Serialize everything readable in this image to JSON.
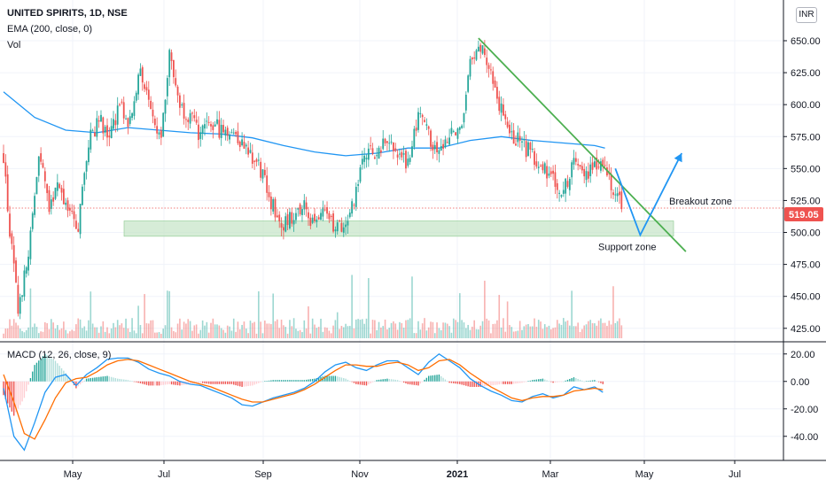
{
  "header": {
    "title": "UNITED SPIRITS, 1D, NSE",
    "ema": "EMA (200, close, 0)",
    "vol": "Vol",
    "macd": "MACD (12, 26, close, 9)",
    "currency": "INR"
  },
  "colors": {
    "up": "#26a69a",
    "down": "#ef5350",
    "ema": "#2196f3",
    "macd_line": "#2196f3",
    "signal_line": "#ff6d00",
    "trendline": "#4caf50",
    "projection": "#2196f3",
    "support_fill": "#c8e6c9",
    "price_tag": "#ef5350"
  },
  "chart_data": [
    {
      "type": "candlestick",
      "title": "UNITED SPIRITS, 1D, NSE",
      "x_ticks": [
        "May",
        "Jul",
        "Sep",
        "Nov",
        "2021",
        "Mar",
        "May",
        "Jul"
      ],
      "y_ticks": [
        "425.00",
        "450.00",
        "475.00",
        "500.00",
        "525.00",
        "550.00",
        "575.00",
        "600.00",
        "625.00",
        "650.00"
      ],
      "ylim": [
        420,
        668
      ],
      "last_price": "519.05",
      "close_path": [
        [
          0,
          560
        ],
        [
          3,
          500
        ],
        [
          7,
          440
        ],
        [
          12,
          480
        ],
        [
          17,
          560
        ],
        [
          22,
          520
        ],
        [
          27,
          540
        ],
        [
          31,
          515
        ],
        [
          36,
          505
        ],
        [
          41,
          570
        ],
        [
          46,
          590
        ],
        [
          51,
          575
        ],
        [
          56,
          600
        ],
        [
          61,
          585
        ],
        [
          66,
          630
        ],
        [
          71,
          590
        ],
        [
          76,
          580
        ],
        [
          80,
          640
        ],
        [
          85,
          600
        ],
        [
          90,
          590
        ],
        [
          95,
          575
        ],
        [
          100,
          585
        ],
        [
          105,
          580
        ],
        [
          110,
          580
        ],
        [
          115,
          570
        ],
        [
          120,
          560
        ],
        [
          125,
          545
        ],
        [
          130,
          520
        ],
        [
          135,
          505
        ],
        [
          140,
          515
        ],
        [
          145,
          520
        ],
        [
          150,
          505
        ],
        [
          155,
          515
        ],
        [
          160,
          505
        ],
        [
          165,
          500
        ],
        [
          170,
          530
        ],
        [
          175,
          565
        ],
        [
          180,
          560
        ],
        [
          185,
          575
        ],
        [
          190,
          560
        ],
        [
          195,
          555
        ],
        [
          200,
          590
        ],
        [
          205,
          575
        ],
        [
          210,
          565
        ],
        [
          215,
          575
        ],
        [
          220,
          580
        ],
        [
          225,
          630
        ],
        [
          230,
          645
        ],
        [
          235,
          630
        ],
        [
          240,
          595
        ],
        [
          245,
          575
        ],
        [
          250,
          570
        ],
        [
          255,
          560
        ],
        [
          260,
          550
        ],
        [
          265,
          545
        ],
        [
          270,
          530
        ],
        [
          275,
          560
        ],
        [
          280,
          545
        ],
        [
          285,
          555
        ],
        [
          290,
          555
        ],
        [
          295,
          530
        ],
        [
          298,
          519
        ]
      ],
      "ema200_path": [
        [
          0,
          610
        ],
        [
          15,
          590
        ],
        [
          30,
          580
        ],
        [
          45,
          578
        ],
        [
          60,
          582
        ],
        [
          75,
          580
        ],
        [
          90,
          578
        ],
        [
          105,
          577
        ],
        [
          120,
          574
        ],
        [
          135,
          568
        ],
        [
          150,
          563
        ],
        [
          165,
          560
        ],
        [
          180,
          562
        ],
        [
          195,
          566
        ],
        [
          210,
          566
        ],
        [
          225,
          572
        ],
        [
          240,
          575
        ],
        [
          255,
          572
        ],
        [
          270,
          570
        ],
        [
          285,
          568
        ],
        [
          290,
          566
        ]
      ],
      "annotations": {
        "support_zone_label": "Support zone",
        "breakout_zone_label": "Breakout zone",
        "support_zone_range": [
          497,
          509
        ],
        "trendline": [
          [
            229,
            652
          ],
          [
            329,
            485
          ]
        ],
        "projection": [
          [
            295,
            550
          ],
          [
            307,
            498
          ],
          [
            327,
            562
          ]
        ]
      }
    },
    {
      "type": "bar",
      "name": "Vol",
      "note": "relative volume, same daily index as price"
    },
    {
      "type": "line",
      "title": "MACD (12, 26, close, 9)",
      "y_ticks": [
        "-40.00",
        "-20.00",
        "0.00",
        "20.00"
      ],
      "ylim": [
        -55,
        25
      ],
      "macd_path": [
        [
          0,
          -5
        ],
        [
          5,
          -40
        ],
        [
          10,
          -50
        ],
        [
          15,
          -30
        ],
        [
          20,
          -8
        ],
        [
          25,
          3
        ],
        [
          30,
          5
        ],
        [
          35,
          -3
        ],
        [
          40,
          5
        ],
        [
          45,
          10
        ],
        [
          50,
          16
        ],
        [
          55,
          17
        ],
        [
          60,
          17
        ],
        [
          65,
          14
        ],
        [
          70,
          9
        ],
        [
          75,
          6
        ],
        [
          80,
          4
        ],
        [
          85,
          0
        ],
        [
          90,
          -2
        ],
        [
          95,
          -3
        ],
        [
          100,
          -6
        ],
        [
          105,
          -9
        ],
        [
          110,
          -12
        ],
        [
          115,
          -17
        ],
        [
          120,
          -18
        ],
        [
          125,
          -15
        ],
        [
          130,
          -12
        ],
        [
          135,
          -10
        ],
        [
          140,
          -8
        ],
        [
          145,
          -5
        ],
        [
          150,
          0
        ],
        [
          155,
          7
        ],
        [
          160,
          12
        ],
        [
          165,
          14
        ],
        [
          170,
          10
        ],
        [
          175,
          8
        ],
        [
          180,
          12
        ],
        [
          185,
          15
        ],
        [
          190,
          15
        ],
        [
          195,
          10
        ],
        [
          200,
          5
        ],
        [
          205,
          14
        ],
        [
          210,
          20
        ],
        [
          215,
          15
        ],
        [
          220,
          10
        ],
        [
          225,
          2
        ],
        [
          230,
          -3
        ],
        [
          235,
          -7
        ],
        [
          240,
          -10
        ],
        [
          245,
          -14
        ],
        [
          250,
          -15
        ],
        [
          255,
          -11
        ],
        [
          260,
          -9
        ],
        [
          265,
          -12
        ],
        [
          270,
          -10
        ],
        [
          275,
          -4
        ],
        [
          280,
          -6
        ],
        [
          285,
          -4
        ],
        [
          289,
          -8
        ]
      ],
      "signal_path": [
        [
          0,
          5
        ],
        [
          5,
          -15
        ],
        [
          10,
          -38
        ],
        [
          15,
          -42
        ],
        [
          20,
          -28
        ],
        [
          25,
          -12
        ],
        [
          30,
          -1
        ],
        [
          35,
          2
        ],
        [
          40,
          3
        ],
        [
          45,
          7
        ],
        [
          50,
          12
        ],
        [
          55,
          15
        ],
        [
          60,
          16
        ],
        [
          65,
          15
        ],
        [
          70,
          12
        ],
        [
          75,
          9
        ],
        [
          80,
          6
        ],
        [
          85,
          3
        ],
        [
          90,
          0
        ],
        [
          95,
          -2
        ],
        [
          100,
          -4
        ],
        [
          105,
          -7
        ],
        [
          110,
          -10
        ],
        [
          115,
          -13
        ],
        [
          120,
          -15
        ],
        [
          125,
          -15
        ],
        [
          130,
          -13
        ],
        [
          135,
          -11
        ],
        [
          140,
          -9
        ],
        [
          145,
          -6
        ],
        [
          150,
          -2
        ],
        [
          155,
          3
        ],
        [
          160,
          8
        ],
        [
          165,
          12
        ],
        [
          170,
          12
        ],
        [
          175,
          11
        ],
        [
          180,
          11
        ],
        [
          185,
          13
        ],
        [
          190,
          14
        ],
        [
          195,
          12
        ],
        [
          200,
          8
        ],
        [
          205,
          10
        ],
        [
          210,
          15
        ],
        [
          215,
          16
        ],
        [
          220,
          12
        ],
        [
          225,
          6
        ],
        [
          230,
          1
        ],
        [
          235,
          -4
        ],
        [
          240,
          -8
        ],
        [
          245,
          -12
        ],
        [
          250,
          -14
        ],
        [
          255,
          -12
        ],
        [
          260,
          -11
        ],
        [
          265,
          -11
        ],
        [
          270,
          -10
        ],
        [
          275,
          -7
        ],
        [
          280,
          -6
        ],
        [
          285,
          -5
        ],
        [
          289,
          -6
        ]
      ]
    }
  ]
}
